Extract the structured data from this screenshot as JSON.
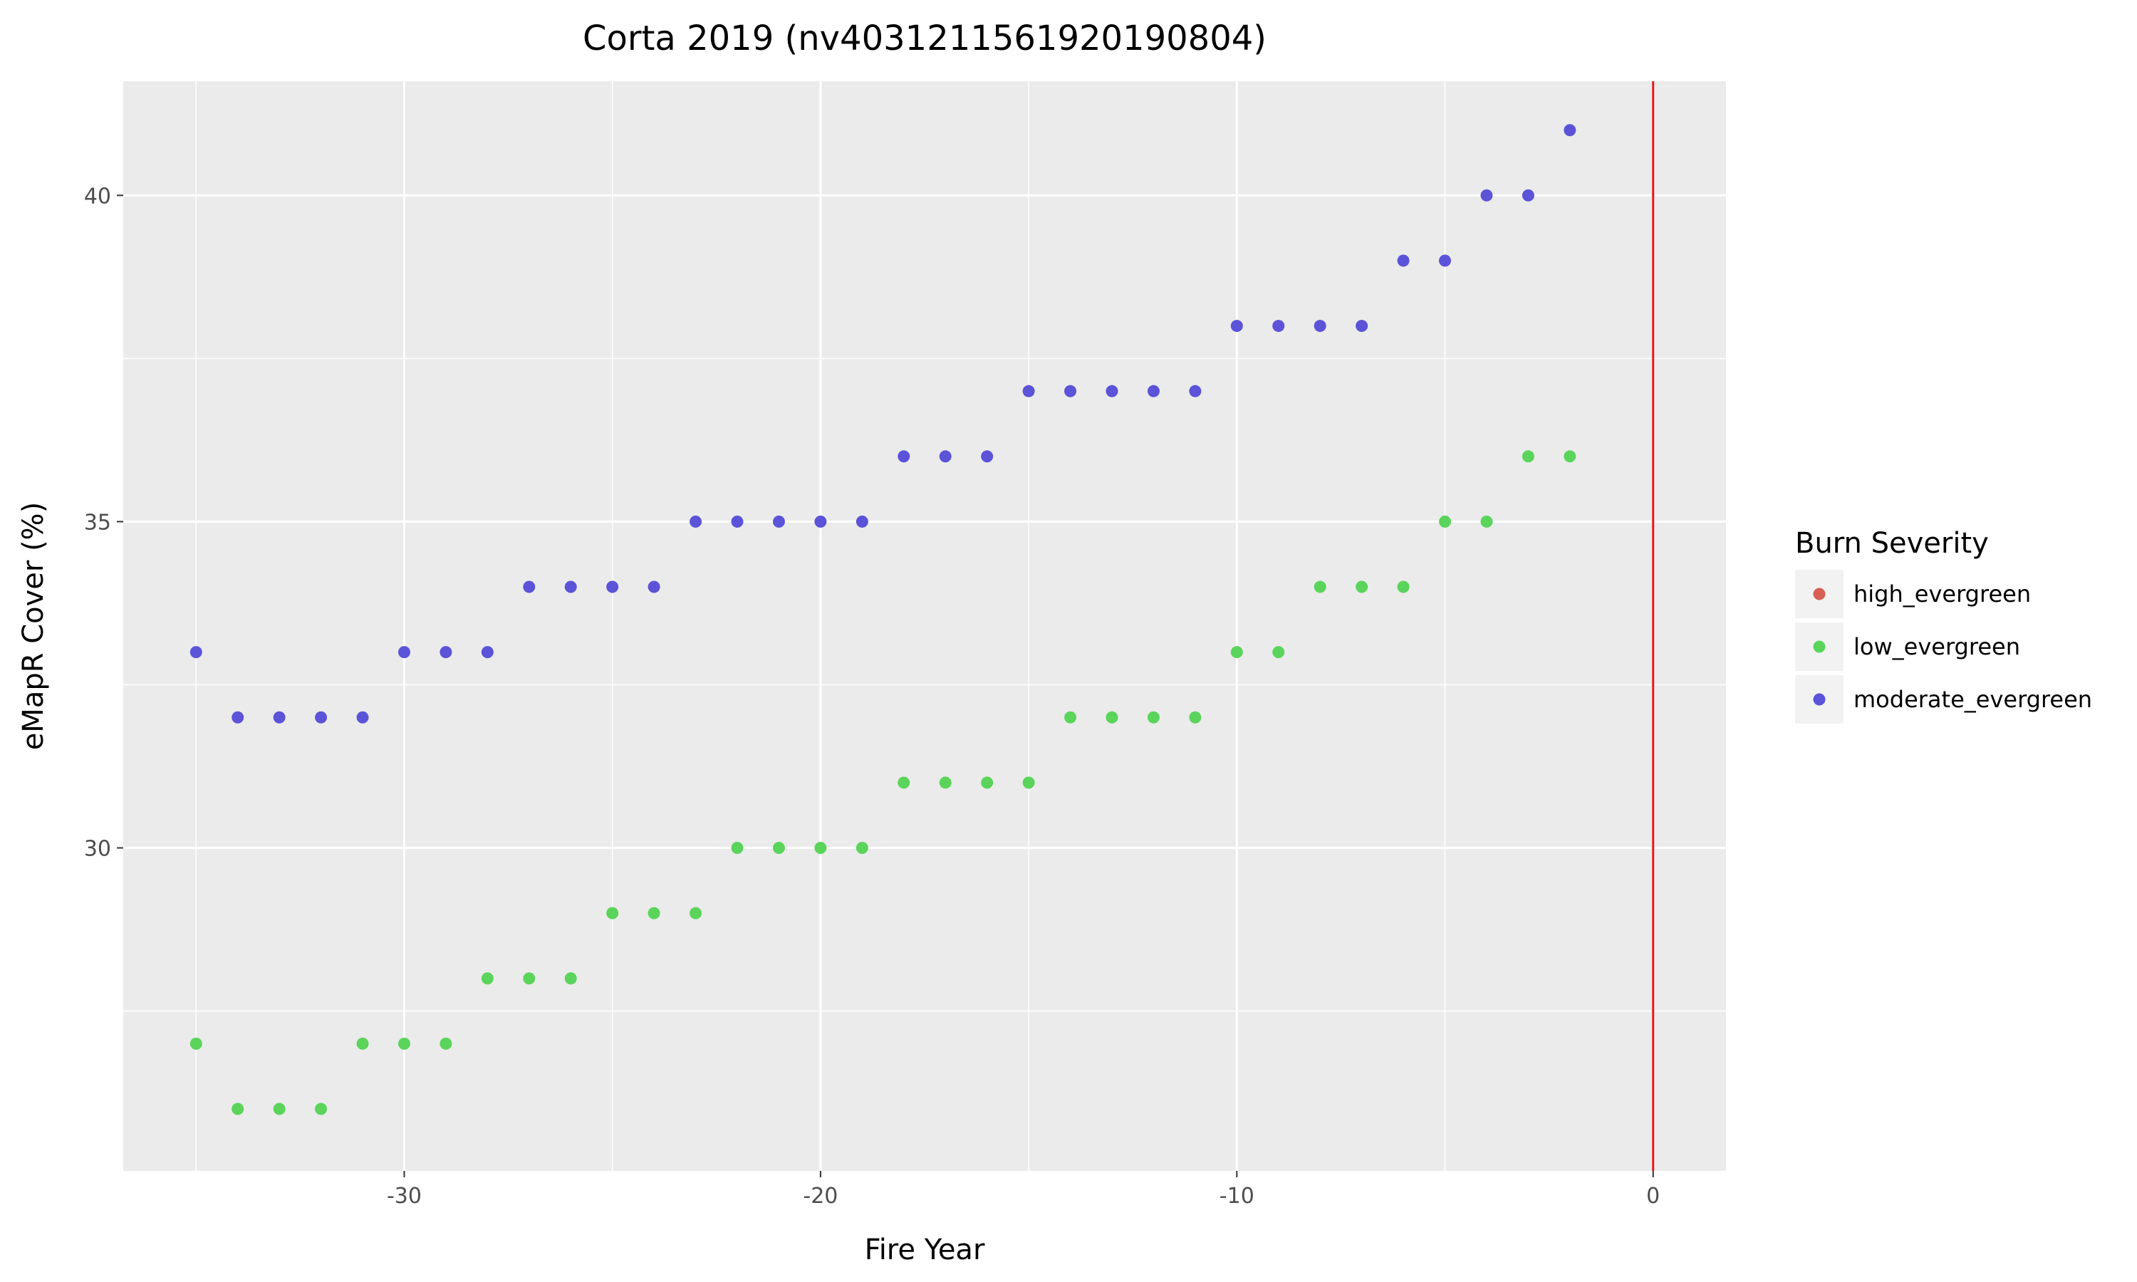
{
  "chart_data": {
    "type": "scatter",
    "title": "Corta 2019 (nv4031211561920190804)",
    "xlabel": "Fire Year",
    "ylabel": "eMapR Cover (%)",
    "xlim": [
      -36.75,
      1.75
    ],
    "ylim": [
      25.05,
      41.75
    ],
    "x_ticks": [
      -30,
      -20,
      -10,
      0
    ],
    "x_tick_labels": [
      "-30",
      "-20",
      "-10",
      "0"
    ],
    "y_ticks": [
      30,
      35,
      40
    ],
    "y_tick_labels": [
      "30",
      "35",
      "40"
    ],
    "grid": true,
    "vline": {
      "x": 0,
      "color": "#e41a1c"
    },
    "legend": {
      "title": "Burn Severity",
      "position": "right",
      "entries": [
        {
          "name": "high_evergreen",
          "color": "#d95f55"
        },
        {
          "name": "low_evergreen",
          "color": "#5ad45a"
        },
        {
          "name": "moderate_evergreen",
          "color": "#5b53d8"
        }
      ]
    },
    "series": [
      {
        "name": "high_evergreen",
        "color": "#d95f55",
        "points": []
      },
      {
        "name": "low_evergreen",
        "color": "#5ad45a",
        "points": [
          [
            -35,
            27
          ],
          [
            -34,
            26
          ],
          [
            -33,
            26
          ],
          [
            -32,
            26
          ],
          [
            -31,
            27
          ],
          [
            -30,
            27
          ],
          [
            -29,
            27
          ],
          [
            -28,
            28
          ],
          [
            -27,
            28
          ],
          [
            -26,
            28
          ],
          [
            -25,
            29
          ],
          [
            -24,
            29
          ],
          [
            -23,
            29
          ],
          [
            -22,
            30
          ],
          [
            -21,
            30
          ],
          [
            -20,
            30
          ],
          [
            -19,
            30
          ],
          [
            -18,
            31
          ],
          [
            -17,
            31
          ],
          [
            -16,
            31
          ],
          [
            -15,
            31
          ],
          [
            -14,
            32
          ],
          [
            -13,
            32
          ],
          [
            -12,
            32
          ],
          [
            -11,
            32
          ],
          [
            -10,
            33
          ],
          [
            -9,
            33
          ],
          [
            -8,
            34
          ],
          [
            -7,
            34
          ],
          [
            -6,
            34
          ],
          [
            -5,
            35
          ],
          [
            -4,
            35
          ],
          [
            -3,
            36
          ],
          [
            -2,
            36
          ]
        ]
      },
      {
        "name": "moderate_evergreen",
        "color": "#5b53d8",
        "points": [
          [
            -35,
            33
          ],
          [
            -34,
            32
          ],
          [
            -33,
            32
          ],
          [
            -32,
            32
          ],
          [
            -31,
            32
          ],
          [
            -30,
            33
          ],
          [
            -29,
            33
          ],
          [
            -28,
            33
          ],
          [
            -27,
            34
          ],
          [
            -26,
            34
          ],
          [
            -25,
            34
          ],
          [
            -24,
            34
          ],
          [
            -23,
            35
          ],
          [
            -22,
            35
          ],
          [
            -21,
            35
          ],
          [
            -20,
            35
          ],
          [
            -19,
            35
          ],
          [
            -18,
            36
          ],
          [
            -17,
            36
          ],
          [
            -16,
            36
          ],
          [
            -15,
            37
          ],
          [
            -14,
            37
          ],
          [
            -13,
            37
          ],
          [
            -12,
            37
          ],
          [
            -11,
            37
          ],
          [
            -10,
            38
          ],
          [
            -9,
            38
          ],
          [
            -8,
            38
          ],
          [
            -7,
            38
          ],
          [
            -6,
            39
          ],
          [
            -5,
            39
          ],
          [
            -4,
            40
          ],
          [
            -3,
            40
          ],
          [
            -2,
            41
          ]
        ]
      }
    ]
  }
}
